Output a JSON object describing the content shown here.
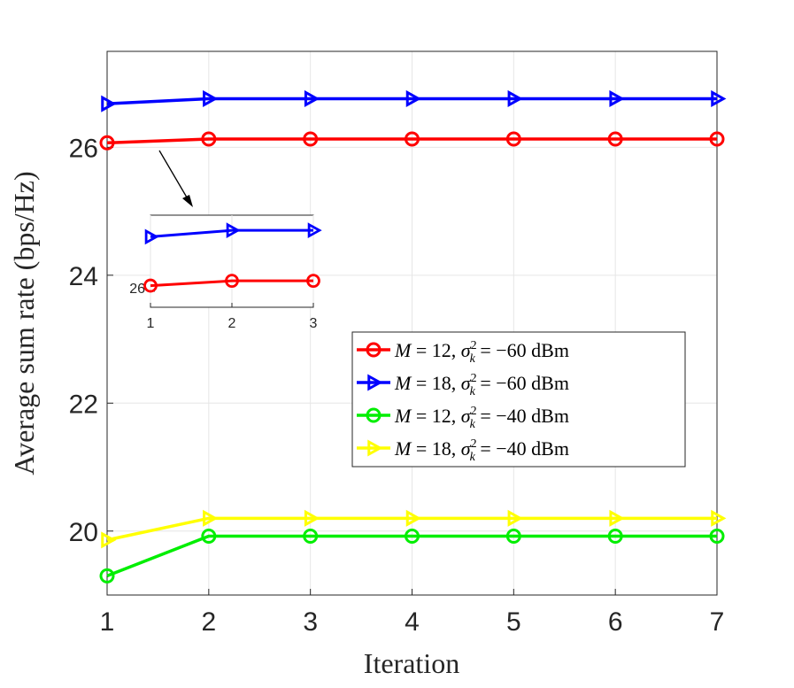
{
  "chart_data": {
    "type": "line",
    "title": "",
    "xlabel": "Iteration",
    "ylabel": "Average sum rate (bps/Hz)",
    "x": [
      1,
      2,
      3,
      4,
      5,
      6,
      7
    ],
    "xlim": [
      1,
      7
    ],
    "ylim": [
      19,
      27.5
    ],
    "xticks": [
      "1",
      "2",
      "3",
      "4",
      "5",
      "6",
      "7"
    ],
    "yticks": [
      {
        "value": 20,
        "label": "20"
      },
      {
        "value": 22,
        "label": "22"
      },
      {
        "value": 24,
        "label": "24"
      },
      {
        "value": 26,
        "label": "26"
      }
    ],
    "grid": true,
    "legend_position": "center-right",
    "series": [
      {
        "name": "M = 12, σk² = −60 dBm",
        "m": "12",
        "noise": "−60",
        "color": "#ff0000",
        "marker": "circle",
        "values": [
          26.07,
          26.13,
          26.13,
          26.13,
          26.13,
          26.13,
          26.13
        ]
      },
      {
        "name": "M = 18, σk² = −60 dBm",
        "m": "18",
        "noise": "−60",
        "color": "#0000ff",
        "marker": "triangle-right",
        "values": [
          26.68,
          26.76,
          26.76,
          26.76,
          26.76,
          26.76,
          26.76
        ]
      },
      {
        "name": "M = 12, σk² = −40 dBm",
        "m": "12",
        "noise": "−40",
        "color": "#00ee00",
        "marker": "circle",
        "values": [
          19.3,
          19.92,
          19.92,
          19.92,
          19.92,
          19.92,
          19.92
        ]
      },
      {
        "name": "M = 18, σk² = −40 dBm",
        "m": "18",
        "noise": "−40",
        "color": "#ffff00",
        "marker": "triangle-right",
        "values": [
          19.86,
          20.2,
          20.2,
          20.2,
          20.2,
          20.2,
          20.2
        ]
      }
    ],
    "inset": {
      "x": [
        1,
        2,
        3
      ],
      "xticks": [
        "1",
        "2",
        "3"
      ],
      "ytick_label": "26",
      "series_indices": [
        0,
        1
      ]
    },
    "annotation": "arrow pointing from the curves at iteration 1 to the zoomed inset"
  }
}
